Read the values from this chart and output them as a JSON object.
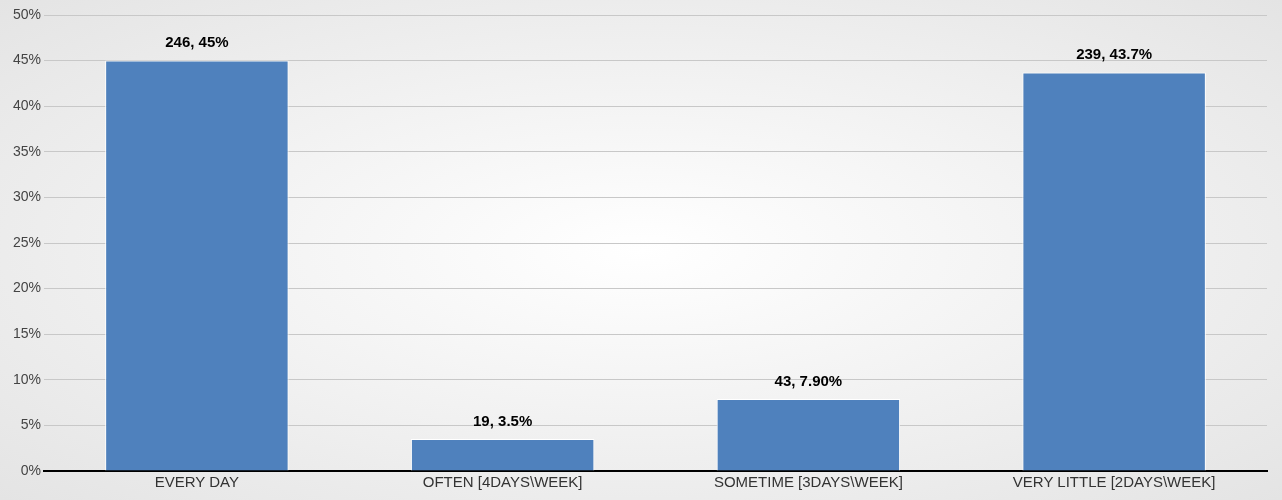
{
  "chart_data": {
    "type": "bar",
    "categories": [
      "EVERY DAY",
      "OFTEN [4DAYS\\WEEK]",
      "SOMETIME [3DAYS\\WEEK]",
      "VERY LITTLE [2DAYS\\WEEK]"
    ],
    "values": [
      45,
      3.5,
      7.9,
      43.7
    ],
    "value_labels": [
      "246, 45%",
      "19, 3.5%",
      "43, 7.90%",
      "239, 43.7%"
    ],
    "color": "#4f81bd",
    "ylim": [
      0,
      50
    ],
    "yticks": [
      {
        "value": 0,
        "label": "0%"
      },
      {
        "value": 5,
        "label": "5%"
      },
      {
        "value": 10,
        "label": "10%"
      },
      {
        "value": 15,
        "label": "15%"
      },
      {
        "value": 20,
        "label": "20%"
      },
      {
        "value": 25,
        "label": "25%"
      },
      {
        "value": 30,
        "label": "30%"
      },
      {
        "value": 35,
        "label": "35%"
      },
      {
        "value": 40,
        "label": "40%"
      },
      {
        "value": 45,
        "label": "45%"
      },
      {
        "value": 50,
        "label": "50%"
      }
    ],
    "grid": "y"
  }
}
